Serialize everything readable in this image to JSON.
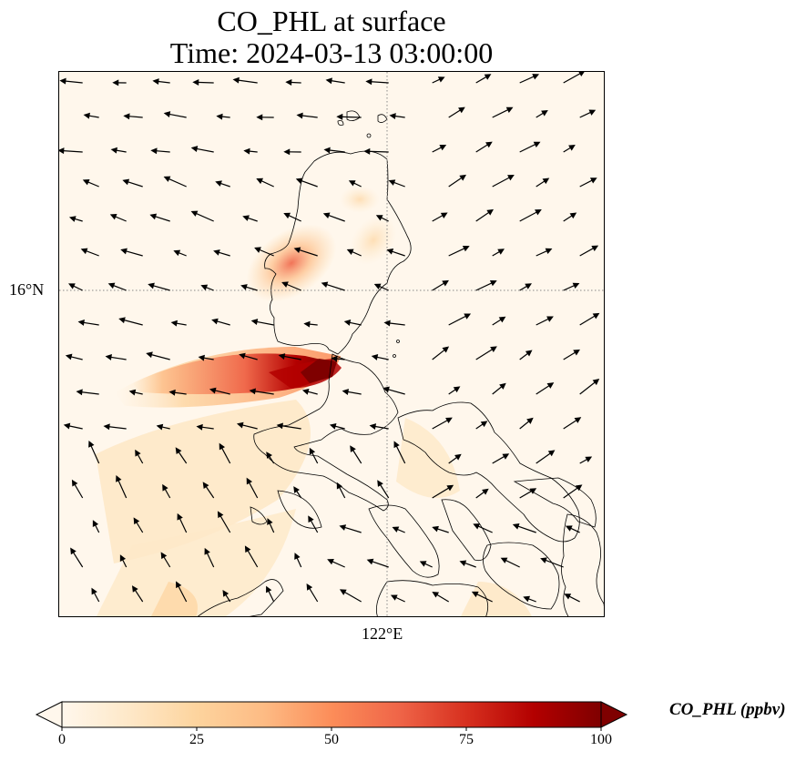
{
  "title": {
    "line1": "CO_PHL at surface",
    "line2": "Time: 2024-03-13 03:00:00"
  },
  "axes": {
    "lat_label": "16°N",
    "lon_label": "122°E",
    "gridline_style": "dotted"
  },
  "colorbar": {
    "label": "CO_PHL (ppbv)",
    "ticks": [
      "0",
      "25",
      "50",
      "75",
      "100"
    ],
    "min": 0,
    "max": 100,
    "colormap": "OrRd",
    "extend": "both",
    "colors": [
      "#fff7ec",
      "#fee8c8",
      "#fdd49e",
      "#fdbb84",
      "#fc8d59",
      "#ef6548",
      "#d7301f",
      "#b30000",
      "#7f0000"
    ]
  },
  "map": {
    "features": [
      "coastlines",
      "wind-vectors",
      "co-concentration-field"
    ],
    "colors": {
      "coast": "#000000",
      "vector": "#000000",
      "grid": "#888888"
    }
  }
}
